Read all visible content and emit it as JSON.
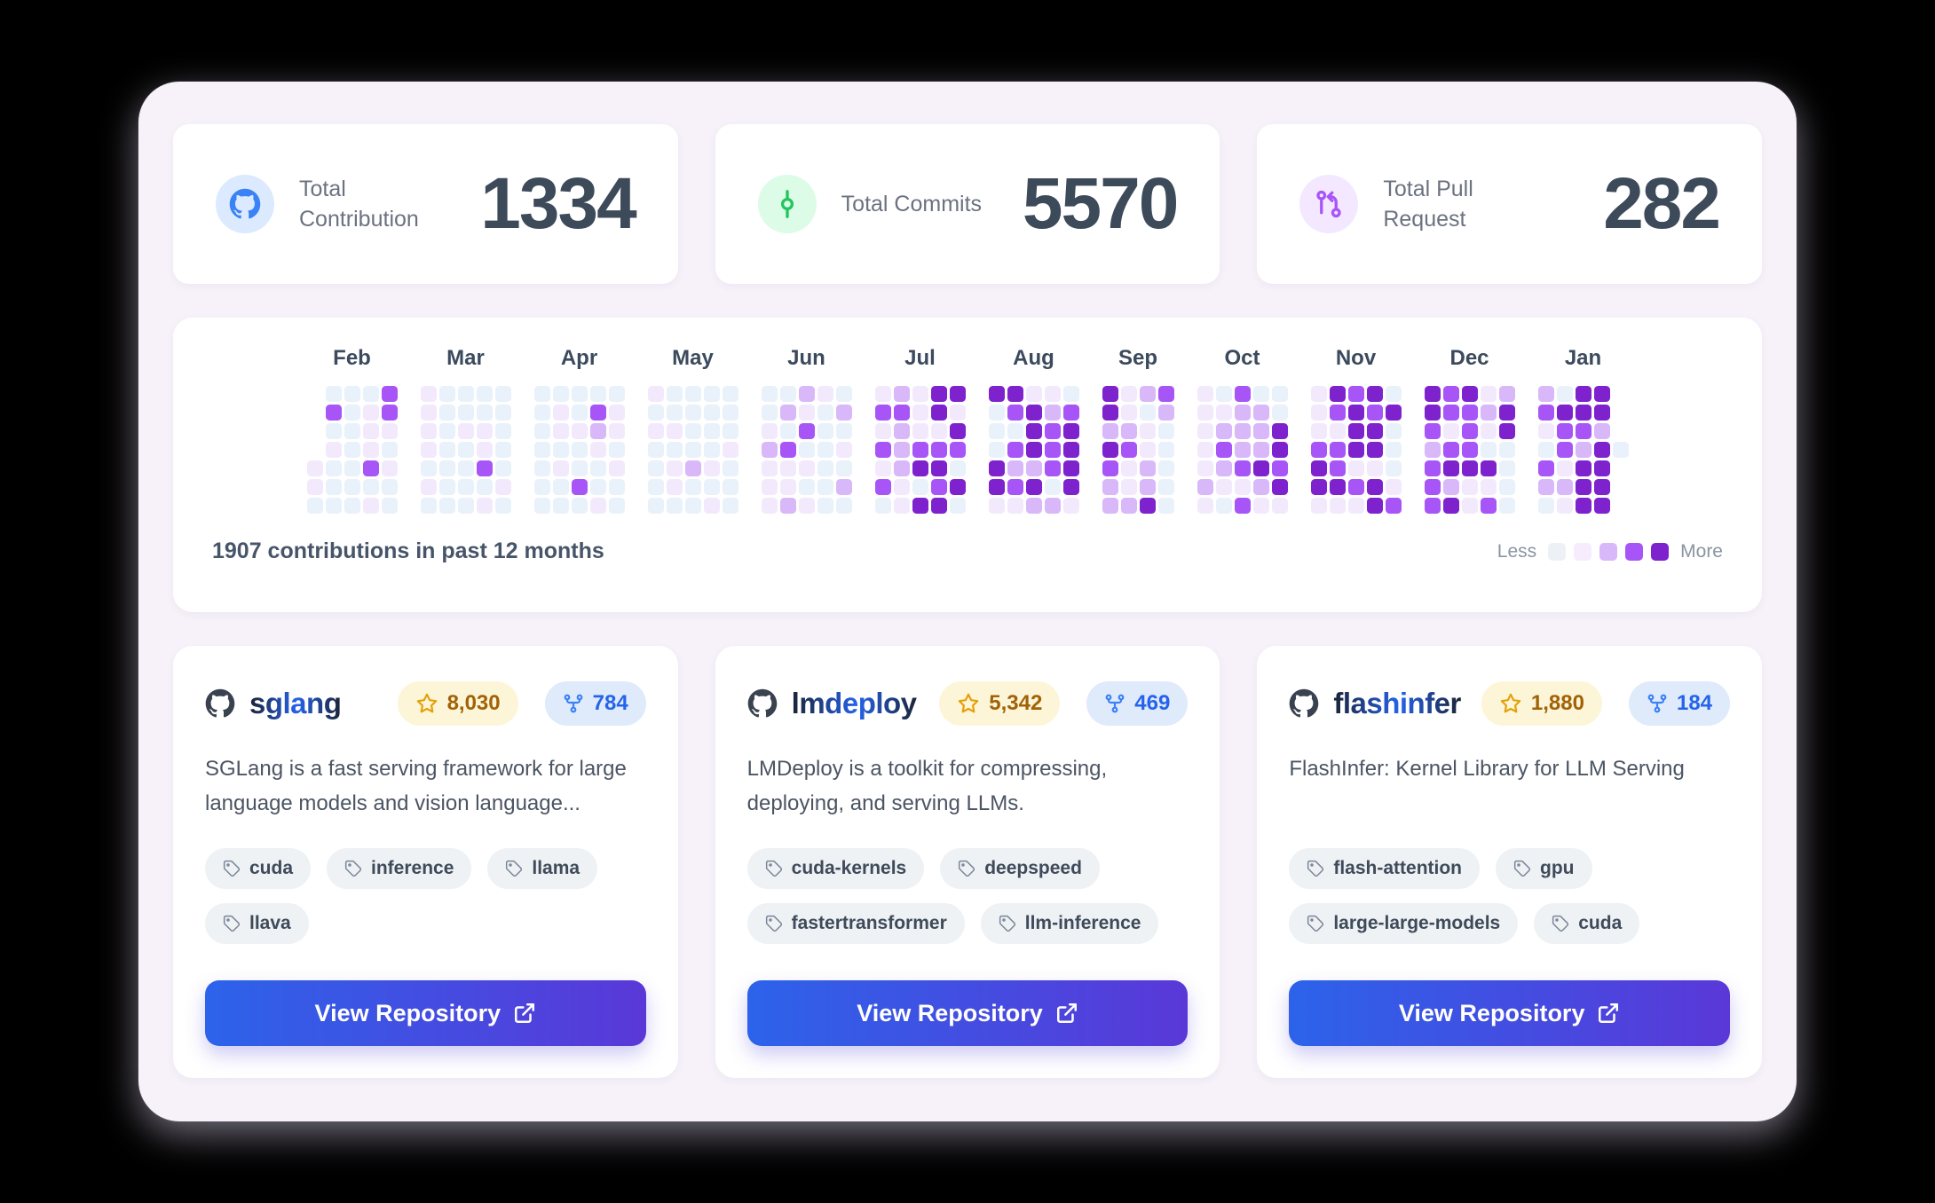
{
  "stats": [
    {
      "icon": "github-icon",
      "label": "Total Contribution",
      "value": "1334",
      "icon_color": "#3b82f6",
      "icon_bg": "#dbeafe"
    },
    {
      "icon": "git-commit-icon",
      "label": "Total Commits",
      "value": "5570",
      "icon_color": "#22c55e",
      "icon_bg": "#dcfce7"
    },
    {
      "icon": "pull-request-icon",
      "label": "Total Pull Request",
      "value": "282",
      "icon_color": "#a855f7",
      "icon_bg": "#f3e8ff"
    }
  ],
  "heatmap": {
    "summary": "1907 contributions in past 12 months",
    "legend": {
      "less_label": "Less",
      "more_label": "More",
      "colors": [
        "#edf1f6",
        "#f6ecfd",
        "#d9b8f9",
        "#a855f7",
        "#7e22ce"
      ]
    },
    "level_colors": {
      "0": "#e9f1fa",
      "1": "#f3e9fc",
      "2": "#d9b8f9",
      "3": "#a855f7",
      "4": "#7e22ce"
    },
    "months": [
      {
        "name": "Feb",
        "levels": [
          [
            null,
            0,
            0,
            0,
            3
          ],
          [
            null,
            3,
            0,
            1,
            3
          ],
          [
            null,
            0,
            0,
            1,
            1
          ],
          [
            null,
            1,
            0,
            1,
            0
          ],
          [
            1,
            0,
            0,
            3,
            1
          ],
          [
            1,
            0,
            0,
            0,
            0
          ],
          [
            0,
            0,
            0,
            1,
            0
          ]
        ]
      },
      {
        "name": "Mar",
        "levels": [
          [
            1,
            0,
            0,
            0,
            0
          ],
          [
            1,
            0,
            0,
            0,
            0
          ],
          [
            1,
            0,
            1,
            1,
            0
          ],
          [
            1,
            0,
            0,
            1,
            0
          ],
          [
            0,
            0,
            0,
            3,
            0
          ],
          [
            1,
            0,
            0,
            0,
            1
          ],
          [
            0,
            0,
            0,
            1,
            0
          ]
        ]
      },
      {
        "name": "Apr",
        "levels": [
          [
            0,
            0,
            0,
            0,
            0
          ],
          [
            0,
            1,
            0,
            3,
            1
          ],
          [
            0,
            1,
            1,
            2,
            1
          ],
          [
            0,
            0,
            0,
            1,
            0
          ],
          [
            0,
            1,
            0,
            0,
            1
          ],
          [
            0,
            0,
            3,
            0,
            0
          ],
          [
            0,
            0,
            0,
            1,
            0
          ]
        ]
      },
      {
        "name": "May",
        "levels": [
          [
            1,
            0,
            0,
            0,
            0
          ],
          [
            0,
            0,
            0,
            0,
            0
          ],
          [
            1,
            1,
            0,
            0,
            0
          ],
          [
            0,
            0,
            0,
            0,
            1
          ],
          [
            0,
            1,
            2,
            1,
            0
          ],
          [
            0,
            1,
            0,
            0,
            0
          ],
          [
            0,
            0,
            0,
            1,
            0
          ]
        ]
      },
      {
        "name": "Jun",
        "levels": [
          [
            0,
            0,
            2,
            1,
            0
          ],
          [
            0,
            2,
            1,
            0,
            2
          ],
          [
            1,
            0,
            3,
            0,
            0
          ],
          [
            2,
            3,
            0,
            0,
            1
          ],
          [
            1,
            1,
            1,
            0,
            0
          ],
          [
            1,
            1,
            0,
            0,
            2
          ],
          [
            1,
            2,
            1,
            0,
            0
          ]
        ]
      },
      {
        "name": "Jul",
        "levels": [
          [
            1,
            2,
            1,
            4,
            4
          ],
          [
            3,
            3,
            1,
            4,
            1
          ],
          [
            1,
            2,
            1,
            1,
            4
          ],
          [
            3,
            2,
            3,
            3,
            3
          ],
          [
            1,
            2,
            4,
            4,
            0
          ],
          [
            3,
            1,
            0,
            3,
            4
          ],
          [
            0,
            1,
            4,
            4,
            0
          ]
        ]
      },
      {
        "name": "Aug",
        "levels": [
          [
            4,
            4,
            1,
            1,
            0
          ],
          [
            0,
            3,
            4,
            2,
            3
          ],
          [
            0,
            0,
            4,
            3,
            4
          ],
          [
            0,
            3,
            4,
            3,
            4
          ],
          [
            4,
            2,
            2,
            3,
            4
          ],
          [
            4,
            3,
            4,
            0,
            4
          ],
          [
            1,
            1,
            2,
            2,
            1
          ]
        ]
      },
      {
        "name": "Sep",
        "levels": [
          [
            4,
            1,
            2,
            3
          ],
          [
            4,
            1,
            0,
            2
          ],
          [
            2,
            2,
            1,
            0
          ],
          [
            4,
            3,
            1,
            0
          ],
          [
            3,
            1,
            2,
            0
          ],
          [
            2,
            1,
            2,
            0
          ],
          [
            2,
            2,
            4,
            0
          ]
        ]
      },
      {
        "name": "Oct",
        "levels": [
          [
            1,
            0,
            3,
            0,
            0
          ],
          [
            1,
            1,
            2,
            2,
            0
          ],
          [
            1,
            2,
            2,
            2,
            4
          ],
          [
            1,
            3,
            2,
            2,
            4
          ],
          [
            1,
            2,
            3,
            4,
            3
          ],
          [
            2,
            1,
            1,
            2,
            4
          ],
          [
            1,
            0,
            3,
            1,
            1
          ]
        ]
      },
      {
        "name": "Nov",
        "levels": [
          [
            1,
            4,
            3,
            4,
            0
          ],
          [
            1,
            3,
            4,
            3,
            4
          ],
          [
            1,
            1,
            4,
            4,
            0
          ],
          [
            3,
            3,
            4,
            4,
            0
          ],
          [
            4,
            3,
            1,
            1,
            0
          ],
          [
            4,
            4,
            3,
            4,
            1
          ],
          [
            1,
            1,
            1,
            4,
            3
          ]
        ]
      },
      {
        "name": "Dec",
        "levels": [
          [
            4,
            3,
            4,
            1,
            2
          ],
          [
            4,
            3,
            3,
            2,
            4
          ],
          [
            3,
            1,
            3,
            1,
            4
          ],
          [
            2,
            3,
            3,
            0,
            0
          ],
          [
            3,
            4,
            4,
            4,
            0
          ],
          [
            3,
            2,
            1,
            1,
            0
          ],
          [
            3,
            4,
            1,
            3,
            0
          ]
        ]
      },
      {
        "name": "Jan",
        "levels": [
          [
            2,
            0,
            4,
            4,
            null
          ],
          [
            3,
            4,
            4,
            4,
            null
          ],
          [
            1,
            3,
            3,
            2,
            null
          ],
          [
            0,
            3,
            2,
            4,
            0
          ],
          [
            3,
            1,
            4,
            4,
            null
          ],
          [
            2,
            2,
            4,
            4,
            null
          ],
          [
            0,
            1,
            4,
            4,
            null
          ]
        ]
      }
    ]
  },
  "repos": [
    {
      "name": "sglang",
      "stars": "8,030",
      "forks": "784",
      "description": "SGLang is a fast serving framework for large language models and vision language...",
      "tags": [
        "cuda",
        "inference",
        "llama",
        "llava"
      ],
      "button_label": "View Repository"
    },
    {
      "name": "lmdeploy",
      "stars": "5,342",
      "forks": "469",
      "description": "LMDeploy is a toolkit for compressing, deploying, and serving LLMs.",
      "tags": [
        "cuda-kernels",
        "deepspeed",
        "fastertransformer",
        "llm-inference"
      ],
      "button_label": "View Repository"
    },
    {
      "name": "flashinfer",
      "stars": "1,880",
      "forks": "184",
      "description": "FlashInfer: Kernel Library for LLM Serving",
      "tags": [
        "flash-attention",
        "gpu",
        "large-large-models",
        "cuda"
      ],
      "button_label": "View Repository"
    }
  ]
}
